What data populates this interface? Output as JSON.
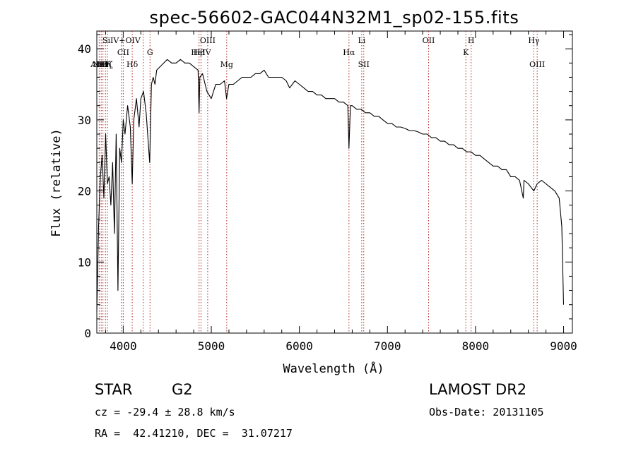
{
  "chart_data": {
    "type": "line",
    "title": "spec-56602-GAC044N32M1_sp02-155.fits",
    "xlabel": "Wavelength (Å)",
    "ylabel": "Flux (relative)",
    "xlim": [
      3700,
      9100
    ],
    "ylim": [
      0,
      42.5
    ],
    "xticks": [
      4000,
      5000,
      6000,
      7000,
      8000,
      9000
    ],
    "yticks": [
      0,
      10,
      20,
      30,
      40
    ],
    "grid": false,
    "series": [
      {
        "x": [
          3700,
          3720,
          3740,
          3760,
          3780,
          3800,
          3820,
          3840,
          3860,
          3880,
          3900,
          3920,
          3940,
          3960,
          3980,
          4000,
          4020,
          4050,
          4080,
          4102,
          4120,
          4150,
          4180,
          4200,
          4230,
          4260,
          4300,
          4320,
          4340,
          4360,
          4380,
          4420,
          4460,
          4500,
          4550,
          4600,
          4650,
          4700,
          4750,
          4800,
          4850,
          4861,
          4870,
          4900,
          4950,
          5000,
          5050,
          5100,
          5150,
          5173,
          5200,
          5250,
          5300,
          5350,
          5400,
          5450,
          5500,
          5550,
          5600,
          5650,
          5700,
          5750,
          5800,
          5850,
          5890,
          5950,
          6000,
          6050,
          6100,
          6150,
          6200,
          6250,
          6300,
          6350,
          6400,
          6450,
          6500,
          6550,
          6563,
          6580,
          6600,
          6650,
          6700,
          6750,
          6800,
          6850,
          6900,
          6950,
          7000,
          7050,
          7100,
          7150,
          7200,
          7250,
          7300,
          7350,
          7400,
          7450,
          7500,
          7550,
          7600,
          7650,
          7700,
          7750,
          7800,
          7850,
          7900,
          7950,
          8000,
          8050,
          8100,
          8150,
          8200,
          8250,
          8300,
          8350,
          8400,
          8450,
          8500,
          8542,
          8550,
          8600,
          8662,
          8700,
          8750,
          8800,
          8850,
          8900,
          8950,
          8980,
          9000
        ],
        "y": [
          3,
          15,
          22,
          25,
          19,
          28,
          21,
          22,
          18,
          24,
          14,
          28,
          6,
          26,
          24,
          30,
          28,
          32,
          29,
          21,
          30,
          33,
          29,
          33,
          34,
          31,
          24,
          35,
          36,
          35,
          37,
          37.5,
          38,
          38.5,
          38,
          38,
          38.5,
          38,
          38,
          37.5,
          37,
          31,
          36,
          36.5,
          34,
          33,
          35,
          35,
          35.5,
          33,
          35,
          35,
          35.5,
          36,
          36,
          36,
          36.5,
          36.5,
          37,
          36,
          36,
          36,
          36,
          35.5,
          34.5,
          35.5,
          35,
          34.5,
          34,
          34,
          33.5,
          33.5,
          33,
          33,
          33,
          32.5,
          32.5,
          32,
          26,
          32,
          32,
          31.5,
          31.5,
          31,
          31,
          30.5,
          30.5,
          30,
          29.5,
          29.5,
          29,
          29,
          28.8,
          28.5,
          28.5,
          28.3,
          28,
          28,
          27.5,
          27.5,
          27,
          27,
          26.5,
          26.5,
          26,
          26,
          25.5,
          25.5,
          25,
          25,
          24.5,
          24,
          23.5,
          23.5,
          23,
          23,
          22,
          22,
          21.5,
          19,
          21.5,
          21,
          20,
          21,
          21.5,
          21,
          20.5,
          20,
          19,
          15,
          4
        ]
      }
    ],
    "line_markers": [
      {
        "x": 3727,
        "label": "AlIII",
        "row": 3
      },
      {
        "x": 3750,
        "label": "NeV",
        "row": 3
      },
      {
        "x": 3770,
        "label": "Hθ",
        "row": 3
      },
      {
        "x": 3798,
        "label": "Hη",
        "row": 3
      },
      {
        "x": 3820,
        "label": "Hζ",
        "row": 3
      },
      {
        "x": 3980,
        "label": "SiIV+OIV",
        "row": 1
      },
      {
        "x": 4000,
        "label": "CII",
        "row": 2
      },
      {
        "x": 4102,
        "label": "Hδ",
        "row": 3
      },
      {
        "x": 4227,
        "label": "",
        "row": 1
      },
      {
        "x": 4304,
        "label": "G",
        "row": 2
      },
      {
        "x": 4861,
        "label": "Hβ",
        "row": 2
      },
      {
        "x": 4883,
        "label": "HeIV",
        "row": 2
      },
      {
        "x": 4959,
        "label": "OIII",
        "row": 1
      },
      {
        "x": 5175,
        "label": "Mg",
        "row": 3
      },
      {
        "x": 6563,
        "label": "Hα",
        "row": 2
      },
      {
        "x": 6708,
        "label": "Li",
        "row": 1
      },
      {
        "x": 6731,
        "label": "SII",
        "row": 3
      },
      {
        "x": 7467,
        "label": "OII",
        "row": 1
      },
      {
        "x": 7890,
        "label": "K",
        "row": 2
      },
      {
        "x": 7950,
        "label": "H",
        "row": 1
      },
      {
        "x": 8662,
        "label": "Hγ",
        "row": 1
      },
      {
        "x": 8700,
        "label": "OIII",
        "row": 3
      }
    ]
  },
  "info": {
    "object_class": "STAR",
    "subclass": "G2",
    "survey": "LAMOST DR2",
    "redshift": "cz = -29.4 ± 28.8 km/s",
    "obs_date": "Obs-Date: 20131105",
    "coords": "RA =  42.41210, DEC =  31.07217"
  }
}
